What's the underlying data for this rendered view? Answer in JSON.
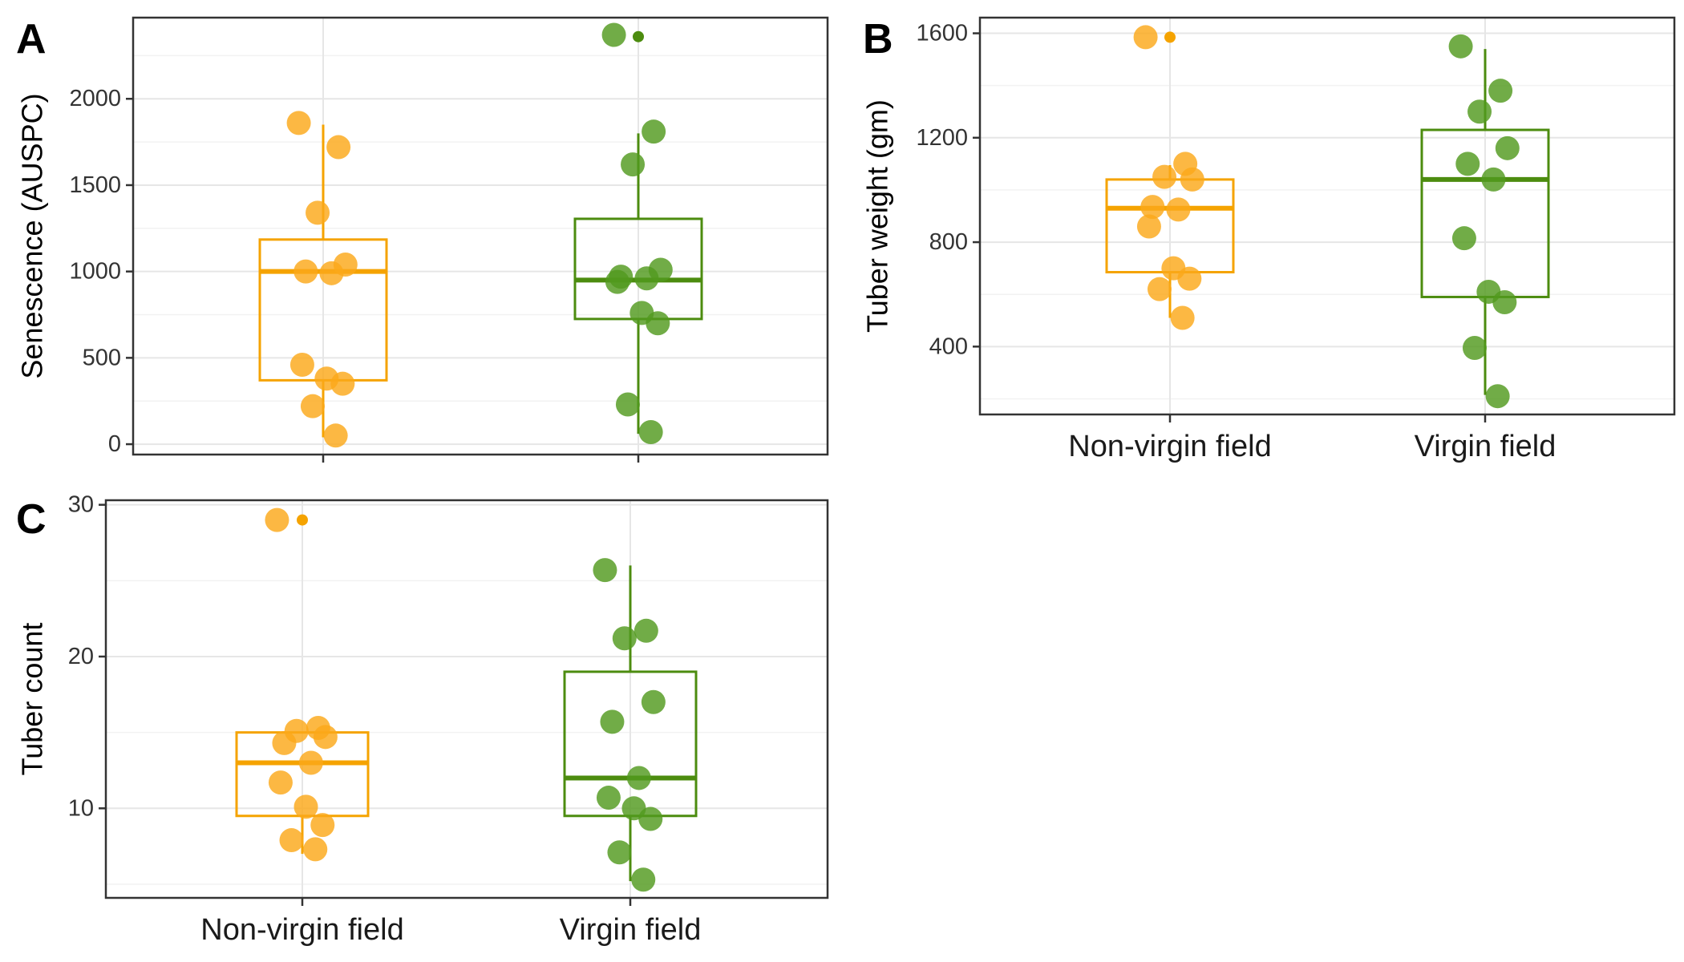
{
  "colors": {
    "non_virgin": "#f5a300",
    "virgin": "#4c8c0f",
    "non_virgin_point": "#fba81a",
    "virgin_point": "#529a1f"
  },
  "chart_data": [
    {
      "panel": "A",
      "type": "box",
      "title": "",
      "xlabel": "",
      "ylabel": "Senescence (AUSPC)",
      "categories": [
        "Non-virgin field",
        "Virgin field"
      ],
      "show_category_labels": false,
      "ylim": [
        -60,
        2470
      ],
      "yticks": [
        0,
        500,
        1000,
        1500,
        2000
      ],
      "grid": true,
      "legend": "none",
      "series": [
        {
          "category": "Non-virgin field",
          "box": {
            "q1": 370,
            "median": 1000,
            "q3": 1185,
            "whisker_low": 40,
            "whisker_high": 1850
          },
          "outliers": [],
          "points": [
            1860,
            1720,
            1340,
            1040,
            1000,
            990,
            460,
            380,
            350,
            220,
            50
          ]
        },
        {
          "category": "Virgin field",
          "box": {
            "q1": 725,
            "median": 950,
            "q3": 1305,
            "whisker_low": 60,
            "whisker_high": 1800
          },
          "outliers": [
            2360
          ],
          "points": [
            2370,
            1810,
            1620,
            1010,
            970,
            960,
            940,
            760,
            700,
            230,
            70
          ]
        }
      ]
    },
    {
      "panel": "B",
      "type": "box",
      "title": "",
      "xlabel": "",
      "ylabel": "Tuber weight (gm)",
      "categories": [
        "Non-virgin field",
        "Virgin field"
      ],
      "show_category_labels": true,
      "ylim": [
        140,
        1660
      ],
      "yticks": [
        400,
        800,
        1200,
        1600
      ],
      "grid": true,
      "legend": "none",
      "series": [
        {
          "category": "Non-virgin field",
          "box": {
            "q1": 685,
            "median": 930,
            "q3": 1040,
            "whisker_low": 510,
            "whisker_high": 1095
          },
          "outliers": [
            1585
          ],
          "points": [
            1585,
            1100,
            1050,
            1040,
            935,
            925,
            860,
            700,
            660,
            620,
            510
          ]
        },
        {
          "category": "Virgin field",
          "box": {
            "q1": 590,
            "median": 1040,
            "q3": 1230,
            "whisker_low": 215,
            "whisker_high": 1540
          },
          "outliers": [],
          "points": [
            1550,
            1380,
            1300,
            1160,
            1100,
            1040,
            815,
            610,
            570,
            395,
            210
          ]
        }
      ]
    },
    {
      "panel": "C",
      "type": "box",
      "title": "",
      "xlabel": "",
      "ylabel": "Tuber count",
      "categories": [
        "Non-virgin field",
        "Virgin field"
      ],
      "show_category_labels": true,
      "ylim": [
        4.1,
        30.3
      ],
      "yticks": [
        10,
        20,
        30
      ],
      "grid": true,
      "legend": "none",
      "series": [
        {
          "category": "Non-virgin field",
          "box": {
            "q1": 9.5,
            "median": 13,
            "q3": 15,
            "whisker_low": 7,
            "whisker_high": 15
          },
          "outliers": [
            29
          ],
          "points": [
            29,
            15.3,
            15.1,
            14.7,
            14.3,
            13,
            11.7,
            10.1,
            8.9,
            7.9,
            7.3
          ]
        },
        {
          "category": "Virgin field",
          "box": {
            "q1": 9.5,
            "median": 12,
            "q3": 19,
            "whisker_low": 5.2,
            "whisker_high": 26
          },
          "outliers": [],
          "points": [
            25.7,
            21.7,
            21.2,
            17,
            15.7,
            12,
            10.7,
            10,
            9.3,
            7.1,
            5.3
          ]
        }
      ]
    }
  ]
}
